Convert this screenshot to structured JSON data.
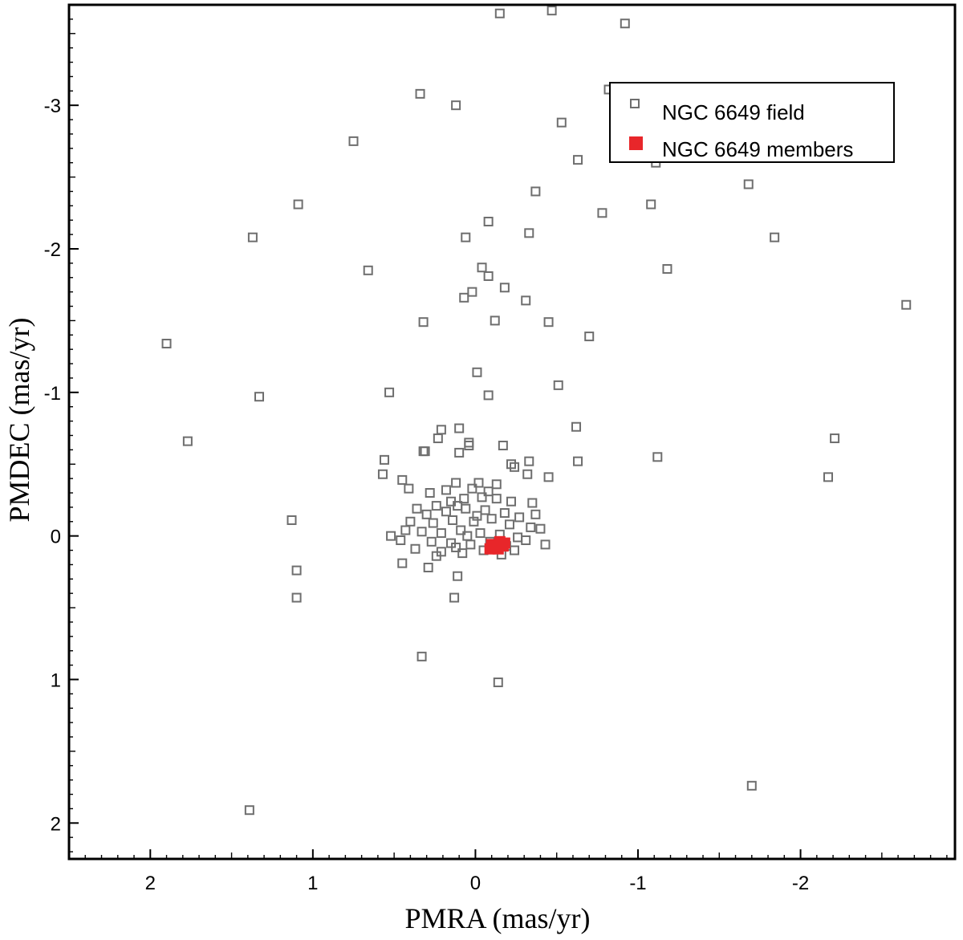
{
  "chart_data": {
    "type": "scatter",
    "xlabel": "PMRA (mas/yr)",
    "ylabel": "PMDEC (mas/yr)",
    "xlim": [
      2.5,
      -2.95
    ],
    "ylim": [
      -3.7,
      2.25
    ],
    "x_reversed": true,
    "y_reversed": true,
    "grid": false,
    "legend_position": "top-right",
    "x_ticks": [
      {
        "value": 2,
        "label": "2"
      },
      {
        "value": 1,
        "label": "1"
      },
      {
        "value": 0,
        "label": "0"
      },
      {
        "value": -1,
        "label": "-1"
      },
      {
        "value": -2,
        "label": "-2"
      }
    ],
    "y_ticks": [
      {
        "value": -3,
        "label": "-3"
      },
      {
        "value": -2,
        "label": "-2"
      },
      {
        "value": -1,
        "label": "-1"
      },
      {
        "value": 0,
        "label": "0"
      },
      {
        "value": 1,
        "label": "1"
      },
      {
        "value": 2,
        "label": "2"
      }
    ],
    "series": [
      {
        "name": "NGC 6649 field",
        "marker": "open-square",
        "color": "#6e6e6e",
        "points": [
          {
            "x": -0.15,
            "y": -3.64
          },
          {
            "x": -0.47,
            "y": -3.66
          },
          {
            "x": -0.92,
            "y": -3.57
          },
          {
            "x": 0.34,
            "y": -3.08
          },
          {
            "x": 0.12,
            "y": -3.0
          },
          {
            "x": 0.75,
            "y": -2.75
          },
          {
            "x": -0.53,
            "y": -2.88
          },
          {
            "x": -0.82,
            "y": -3.11
          },
          {
            "x": -0.63,
            "y": -2.62
          },
          {
            "x": -1.11,
            "y": -2.6
          },
          {
            "x": -0.37,
            "y": -2.4
          },
          {
            "x": 1.09,
            "y": -2.31
          },
          {
            "x": -0.08,
            "y": -2.19
          },
          {
            "x": -0.78,
            "y": -2.25
          },
          {
            "x": -1.08,
            "y": -2.31
          },
          {
            "x": -1.68,
            "y": -2.45
          },
          {
            "x": 1.37,
            "y": -2.08
          },
          {
            "x": 0.06,
            "y": -2.08
          },
          {
            "x": -0.33,
            "y": -2.11
          },
          {
            "x": -1.84,
            "y": -2.08
          },
          {
            "x": 0.66,
            "y": -1.85
          },
          {
            "x": -0.04,
            "y": -1.87
          },
          {
            "x": -0.08,
            "y": -1.81
          },
          {
            "x": -1.18,
            "y": -1.86
          },
          {
            "x": 0.02,
            "y": -1.7
          },
          {
            "x": 0.07,
            "y": -1.66
          },
          {
            "x": -0.18,
            "y": -1.73
          },
          {
            "x": -0.31,
            "y": -1.64
          },
          {
            "x": -2.65,
            "y": -1.61
          },
          {
            "x": 0.32,
            "y": -1.49
          },
          {
            "x": -0.12,
            "y": -1.5
          },
          {
            "x": -0.45,
            "y": -1.49
          },
          {
            "x": -0.7,
            "y": -1.39
          },
          {
            "x": 1.9,
            "y": -1.34
          },
          {
            "x": -0.01,
            "y": -1.14
          },
          {
            "x": 0.53,
            "y": -1.0
          },
          {
            "x": -0.51,
            "y": -1.05
          },
          {
            "x": -0.08,
            "y": -0.98
          },
          {
            "x": 1.33,
            "y": -0.97
          },
          {
            "x": 0.21,
            "y": -0.74
          },
          {
            "x": 0.1,
            "y": -0.75
          },
          {
            "x": -0.62,
            "y": -0.76
          },
          {
            "x": 0.23,
            "y": -0.68
          },
          {
            "x": 0.04,
            "y": -0.65
          },
          {
            "x": 0.04,
            "y": -0.63
          },
          {
            "x": -0.17,
            "y": -0.63
          },
          {
            "x": 1.77,
            "y": -0.66
          },
          {
            "x": -2.21,
            "y": -0.68
          },
          {
            "x": 0.31,
            "y": -0.59
          },
          {
            "x": 0.32,
            "y": -0.59
          },
          {
            "x": 0.1,
            "y": -0.58
          },
          {
            "x": -0.63,
            "y": -0.52
          },
          {
            "x": -1.12,
            "y": -0.55
          },
          {
            "x": 0.56,
            "y": -0.53
          },
          {
            "x": -0.22,
            "y": -0.5
          },
          {
            "x": -0.33,
            "y": -0.52
          },
          {
            "x": -0.24,
            "y": -0.48
          },
          {
            "x": 0.57,
            "y": -0.43
          },
          {
            "x": -0.32,
            "y": -0.43
          },
          {
            "x": -0.45,
            "y": -0.41
          },
          {
            "x": 0.45,
            "y": -0.39
          },
          {
            "x": -2.17,
            "y": -0.41
          },
          {
            "x": 0.41,
            "y": -0.33
          },
          {
            "x": 0.12,
            "y": -0.37
          },
          {
            "x": -0.02,
            "y": -0.37
          },
          {
            "x": -0.13,
            "y": -0.36
          },
          {
            "x": 1.13,
            "y": -0.11
          },
          {
            "x": 0.52,
            "y": 0.0
          },
          {
            "x": 0.45,
            "y": 0.19
          },
          {
            "x": 1.1,
            "y": 0.24
          },
          {
            "x": 0.29,
            "y": 0.22
          },
          {
            "x": 0.11,
            "y": 0.28
          },
          {
            "x": 1.1,
            "y": 0.43
          },
          {
            "x": 0.13,
            "y": 0.43
          },
          {
            "x": 0.33,
            "y": 0.84
          },
          {
            "x": -0.14,
            "y": 1.02
          },
          {
            "x": -1.7,
            "y": 1.74
          },
          {
            "x": 1.39,
            "y": 1.91
          },
          {
            "x": 0.36,
            "y": -0.19
          },
          {
            "x": 0.24,
            "y": -0.21
          },
          {
            "x": 0.15,
            "y": -0.24
          },
          {
            "x": 0.07,
            "y": -0.26
          },
          {
            "x": -0.04,
            "y": -0.27
          },
          {
            "x": -0.13,
            "y": -0.26
          },
          {
            "x": -0.22,
            "y": -0.24
          },
          {
            "x": -0.35,
            "y": -0.23
          },
          {
            "x": 0.3,
            "y": -0.15
          },
          {
            "x": 0.18,
            "y": -0.17
          },
          {
            "x": 0.06,
            "y": -0.19
          },
          {
            "x": -0.06,
            "y": -0.18
          },
          {
            "x": -0.18,
            "y": -0.16
          },
          {
            "x": -0.27,
            "y": -0.13
          },
          {
            "x": 0.4,
            "y": -0.1
          },
          {
            "x": 0.26,
            "y": -0.09
          },
          {
            "x": 0.14,
            "y": -0.11
          },
          {
            "x": 0.01,
            "y": -0.1
          },
          {
            "x": -0.1,
            "y": -0.12
          },
          {
            "x": -0.21,
            "y": -0.08
          },
          {
            "x": -0.34,
            "y": -0.06
          },
          {
            "x": 0.33,
            "y": -0.03
          },
          {
            "x": 0.21,
            "y": -0.02
          },
          {
            "x": 0.09,
            "y": -0.04
          },
          {
            "x": -0.03,
            "y": -0.02
          },
          {
            "x": -0.15,
            "y": -0.01
          },
          {
            "x": -0.26,
            "y": 0.01
          },
          {
            "x": 0.27,
            "y": 0.04
          },
          {
            "x": 0.15,
            "y": 0.05
          },
          {
            "x": 0.03,
            "y": 0.06
          },
          {
            "x": -0.09,
            "y": 0.04
          },
          {
            "x": -0.19,
            "y": 0.07
          },
          {
            "x": -0.31,
            "y": 0.03
          },
          {
            "x": 0.37,
            "y": 0.09
          },
          {
            "x": 0.21,
            "y": 0.11
          },
          {
            "x": 0.08,
            "y": 0.12
          },
          {
            "x": -0.05,
            "y": 0.1
          },
          {
            "x": -0.16,
            "y": 0.13
          },
          {
            "x": -0.24,
            "y": 0.1
          },
          {
            "x": 0.43,
            "y": -0.04
          },
          {
            "x": 0.46,
            "y": 0.03
          },
          {
            "x": -0.37,
            "y": -0.15
          },
          {
            "x": -0.4,
            "y": -0.05
          },
          {
            "x": -0.43,
            "y": 0.06
          },
          {
            "x": 0.18,
            "y": -0.32
          },
          {
            "x": 0.02,
            "y": -0.33
          },
          {
            "x": -0.08,
            "y": -0.31
          },
          {
            "x": 0.28,
            "y": -0.3
          },
          {
            "x": 0.11,
            "y": -0.21
          },
          {
            "x": -0.01,
            "y": -0.14
          },
          {
            "x": 0.05,
            "y": 0.0
          },
          {
            "x": -0.12,
            "y": 0.06
          },
          {
            "x": 0.12,
            "y": 0.08
          },
          {
            "x": 0.24,
            "y": 0.14
          }
        ]
      },
      {
        "name": "NGC 6649 members",
        "marker": "filled-square",
        "color": "#e8262a",
        "points": [
          {
            "x": -0.09,
            "y": 0.09
          },
          {
            "x": -0.12,
            "y": 0.06
          },
          {
            "x": -0.14,
            "y": 0.09
          },
          {
            "x": -0.1,
            "y": 0.06
          },
          {
            "x": -0.16,
            "y": 0.06
          },
          {
            "x": -0.18,
            "y": 0.05
          },
          {
            "x": -0.13,
            "y": 0.08
          },
          {
            "x": -0.11,
            "y": 0.07
          },
          {
            "x": -0.17,
            "y": 0.07
          },
          {
            "x": -0.15,
            "y": 0.04
          }
        ]
      }
    ]
  }
}
